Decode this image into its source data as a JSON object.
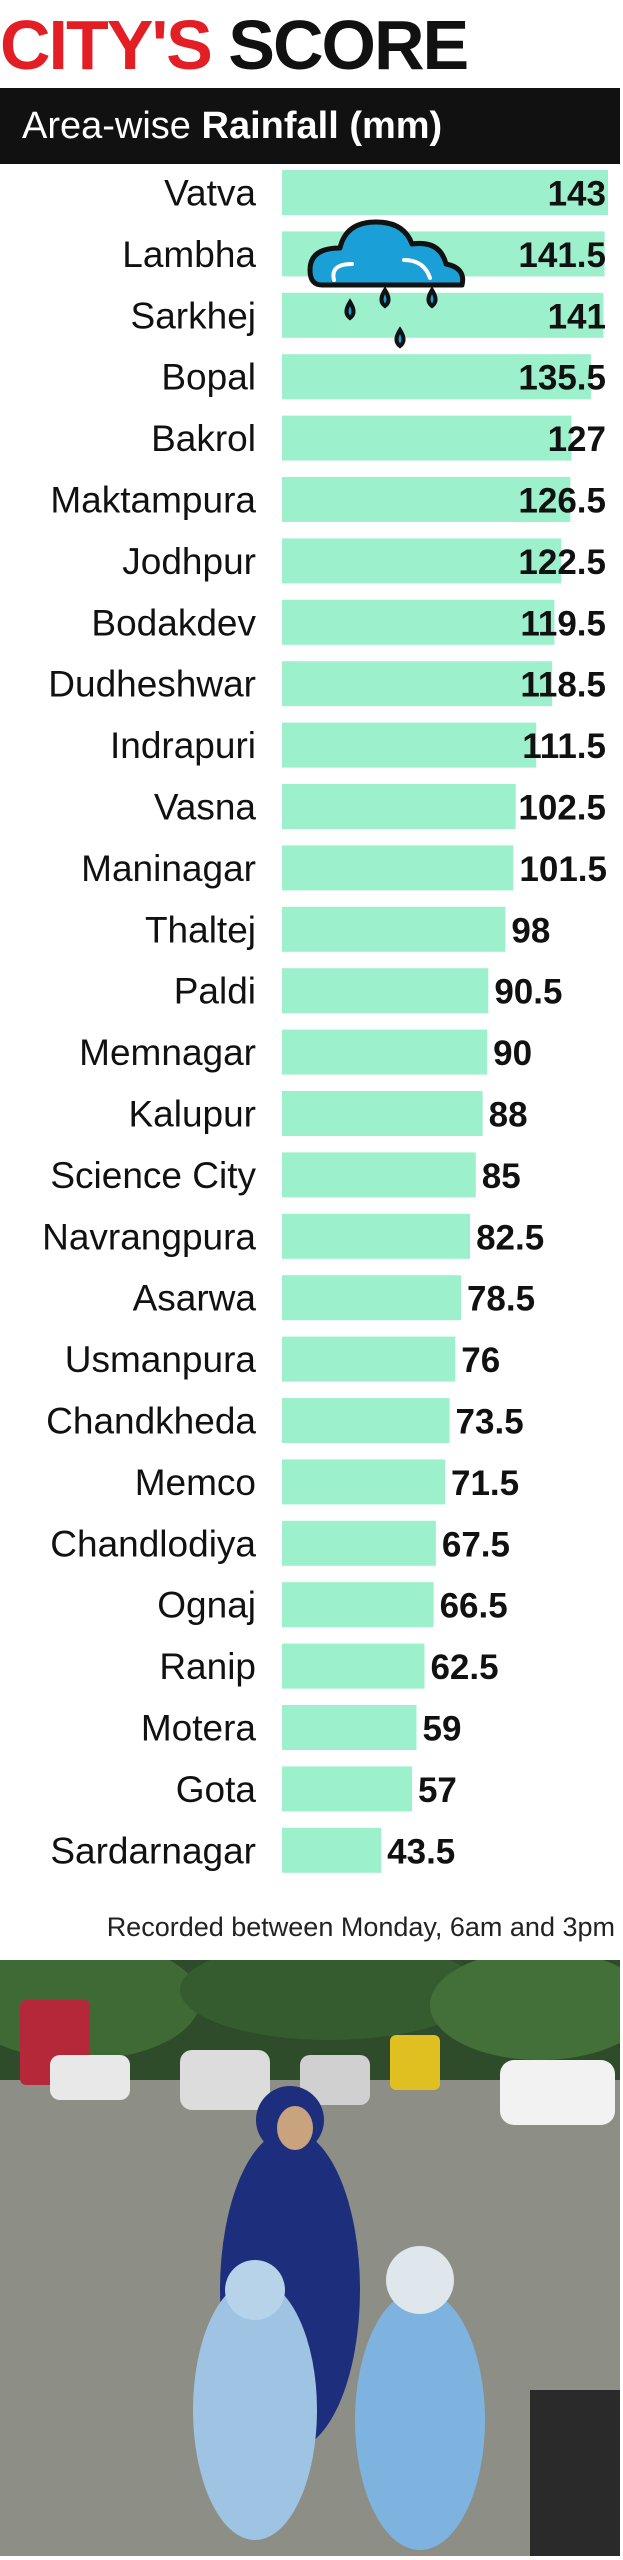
{
  "header": {
    "title_part1": "CITY'S",
    "title_part2": "SCORE",
    "subtitle_prefix": "Area-wise",
    "subtitle_bold": "Rainfall (mm)"
  },
  "colors": {
    "accent_red": "#e31e24",
    "bar_fill": "#9cf0cc",
    "header_bg": "#111111",
    "rain_icon_fill": "#1a9fd6"
  },
  "icons": [
    "rain-cloud-icon"
  ],
  "chart_data": {
    "type": "bar",
    "orientation": "horizontal",
    "title": "Area-wise Rainfall (mm)",
    "categories": [
      "Vatva",
      "Lambha",
      "Sarkhej",
      "Bopal",
      "Bakrol",
      "Maktampura",
      "Jodhpur",
      "Bodakdev",
      "Dudheshwar",
      "Indrapuri",
      "Vasna",
      "Maninagar",
      "Thaltej",
      "Paldi",
      "Memnagar",
      "Kalupur",
      "Science City",
      "Navrangpura",
      "Asarwa",
      "Usmanpura",
      "Chandkheda",
      "Memco",
      "Chandlodiya",
      "Ognaj",
      "Ranip",
      "Motera",
      "Gota",
      "Sardarnagar"
    ],
    "values": [
      143,
      141.5,
      141,
      135.5,
      127,
      126.5,
      122.5,
      119.5,
      118.5,
      111.5,
      102.5,
      101.5,
      98,
      90.5,
      90,
      88,
      85,
      82.5,
      78.5,
      76,
      73.5,
      71.5,
      67.5,
      66.5,
      62.5,
      59,
      57,
      43.5
    ],
    "value_labels": [
      "143",
      "141.5",
      "141",
      "135.5",
      "127",
      "126.5",
      "122.5",
      "119.5",
      "118.5",
      "111.5",
      "102.5",
      "101.5",
      "98",
      "90.5",
      "90",
      "88",
      "85",
      "82.5",
      "78.5",
      "76",
      "73.5",
      "71.5",
      "67.5",
      "66.5",
      "62.5",
      "59",
      "57",
      "43.5"
    ],
    "xlim": [
      0,
      143
    ],
    "grid": false,
    "legend": "none"
  },
  "footnote": "Recorded between Monday, 6am and 3pm",
  "photo": {
    "alt": ""
  }
}
